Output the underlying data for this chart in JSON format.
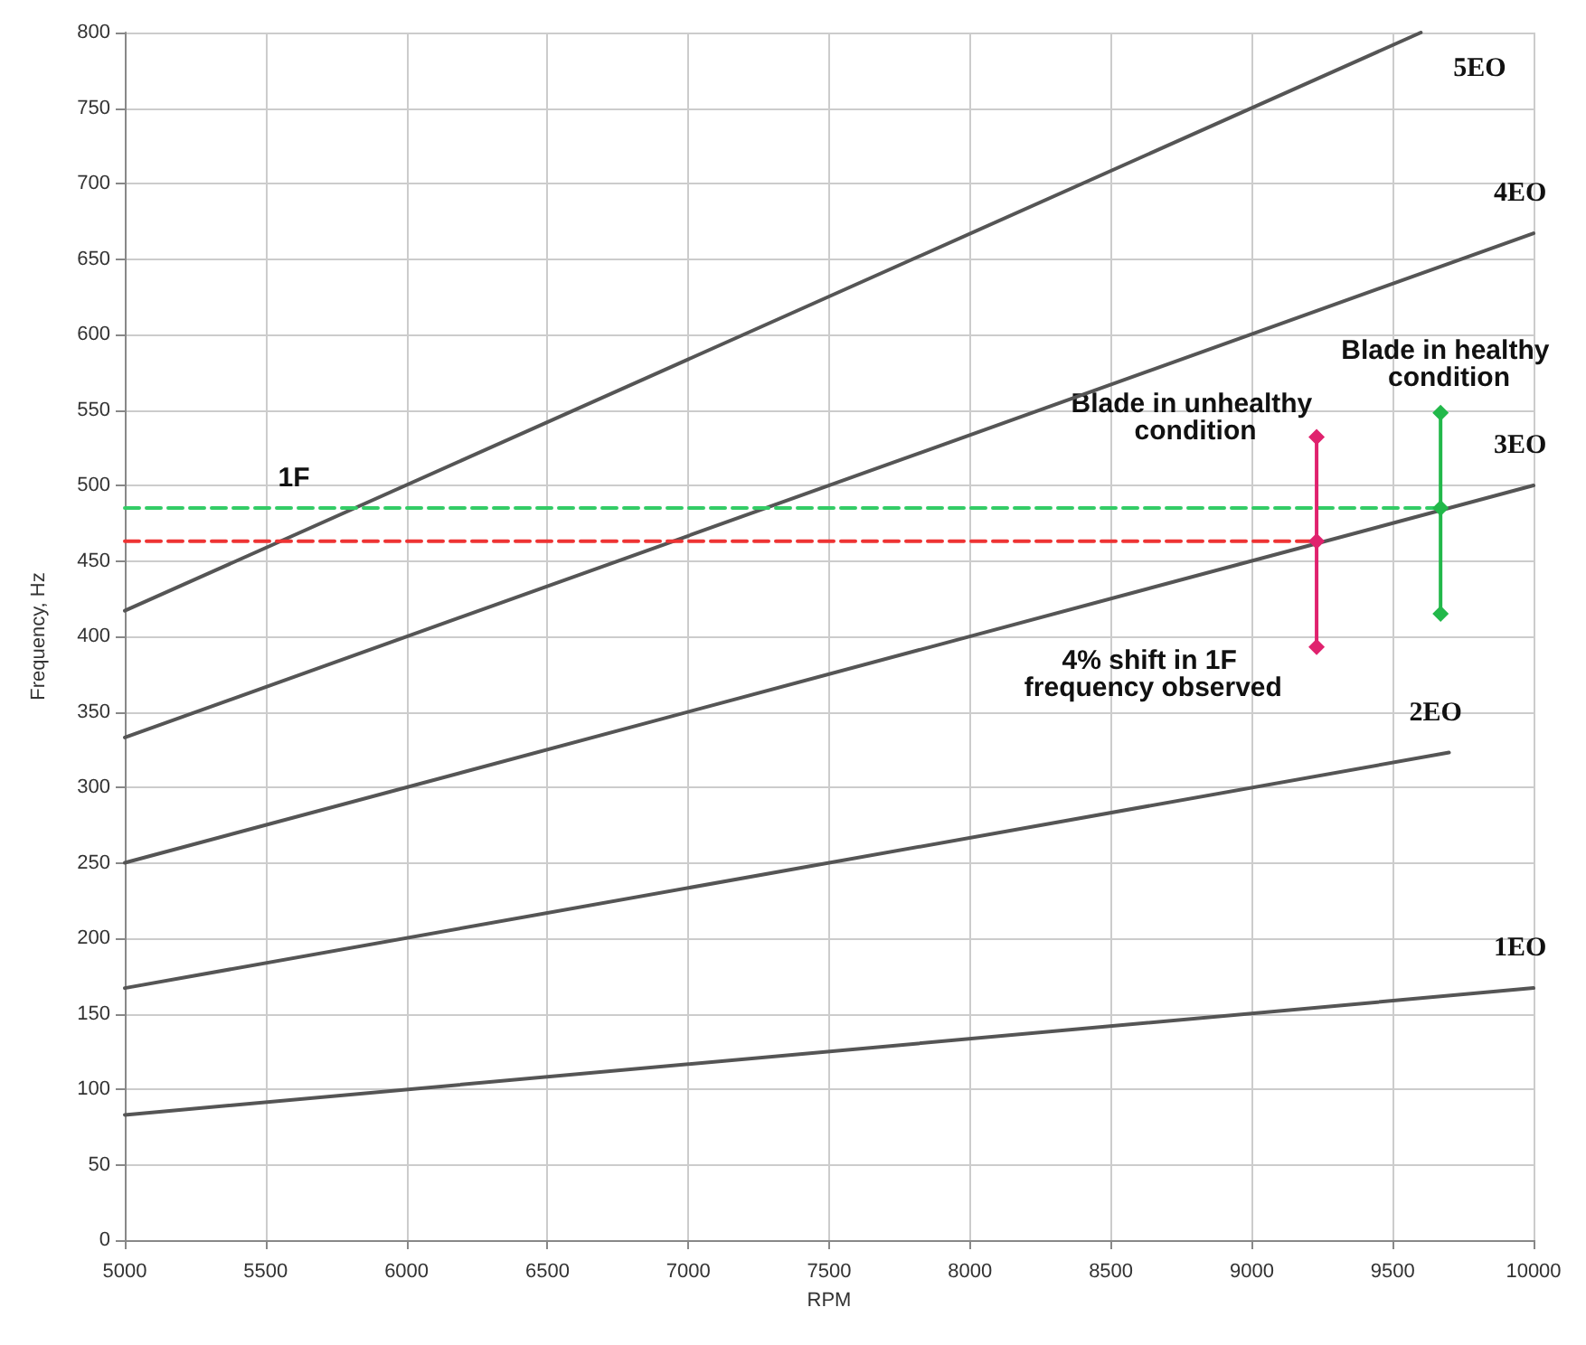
{
  "chart_data": {
    "type": "line",
    "xlabel": "RPM",
    "ylabel": "Frequency, Hz",
    "xlim": [
      5000,
      10000
    ],
    "xticks": [
      5000,
      5500,
      6000,
      6500,
      7000,
      7500,
      8000,
      8500,
      9000,
      9500,
      10000
    ],
    "ylim": [
      0,
      800
    ],
    "yticks": [
      0,
      50,
      100,
      150,
      200,
      250,
      300,
      350,
      400,
      450,
      500,
      550,
      600,
      650,
      700,
      750,
      800
    ],
    "grid": true,
    "legend": false,
    "line_style": "solid",
    "marker": "none",
    "series": [
      {
        "name": "1EO",
        "color": "#555555",
        "x": [
          5000,
          10000
        ],
        "values": [
          83,
          167
        ]
      },
      {
        "name": "2EO",
        "color": "#555555",
        "x": [
          5000,
          9700
        ],
        "values": [
          167,
          323
        ]
      },
      {
        "name": "3EO",
        "color": "#555555",
        "x": [
          5000,
          10000
        ],
        "values": [
          250,
          500
        ]
      },
      {
        "name": "4EO",
        "color": "#555555",
        "x": [
          5000,
          10000
        ],
        "values": [
          333,
          667
        ]
      },
      {
        "name": "5EO",
        "color": "#555555",
        "x": [
          5000,
          9600
        ],
        "values": [
          417,
          800
        ]
      },
      {
        "color": "#33cc66",
        "x": [
          5000,
          9670
        ],
        "values": [
          485,
          485
        ],
        "line_style": "dashed"
      },
      {
        "color": "#ee3333",
        "x": [
          5000,
          9230
        ],
        "values": [
          463,
          463
        ],
        "line_style": "dashed"
      },
      {
        "color": "#e0226e",
        "x": [
          9230,
          9230,
          9230
        ],
        "values": [
          393,
          463,
          532
        ],
        "marker": "diamond"
      },
      {
        "color": "#22b84a",
        "x": [
          9670,
          9670,
          9670
        ],
        "values": [
          415,
          485,
          548
        ],
        "marker": "diamond"
      }
    ],
    "annotations": [
      "1F",
      "Blade in unhealthy condition",
      "Blade in healthy condition",
      "4% shift in 1F frequency observed"
    ]
  }
}
